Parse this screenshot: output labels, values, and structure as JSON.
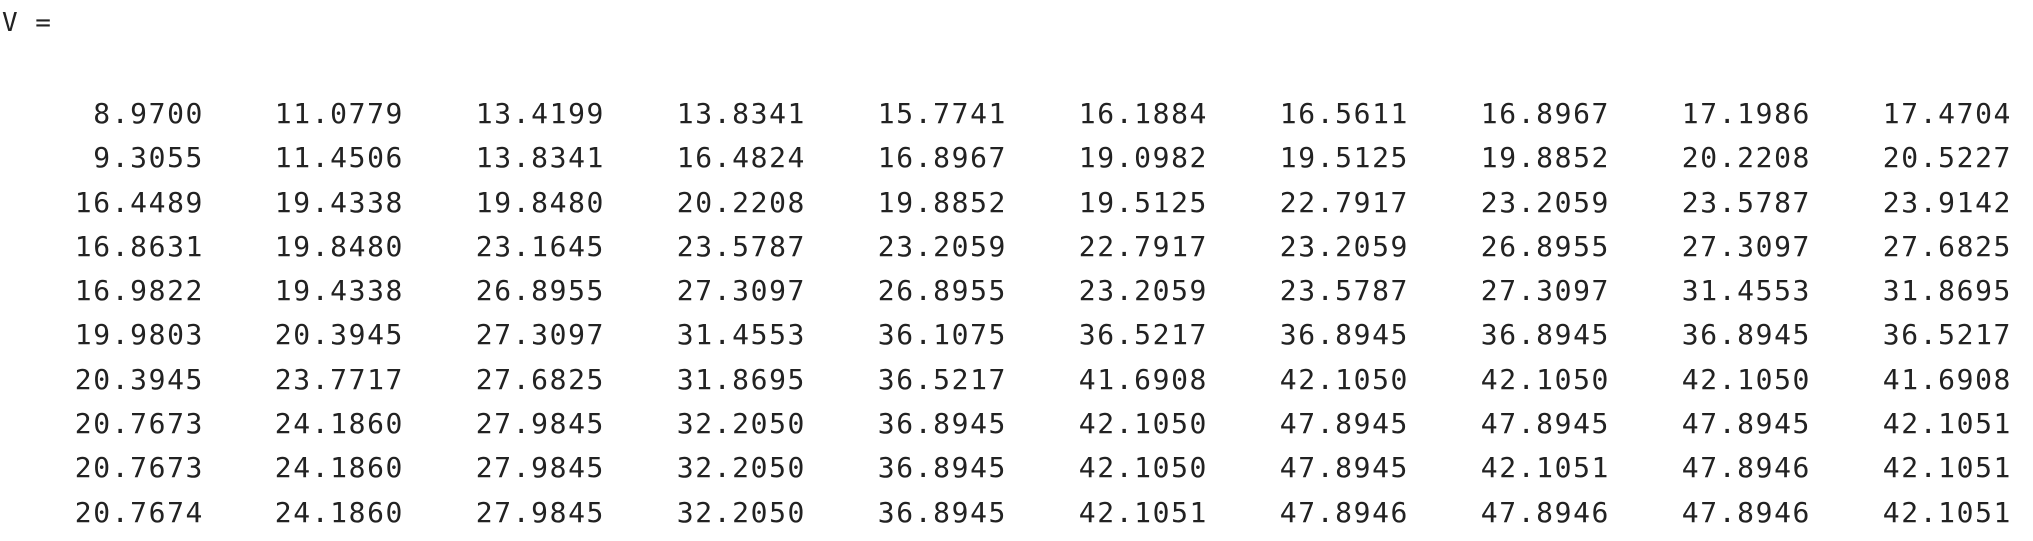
{
  "console": {
    "variable_label": "V =",
    "matrix": [
      [
        "8.9700",
        "11.0779",
        "13.4199",
        "13.8341",
        "15.7741",
        "16.1884",
        "16.5611",
        "16.8967",
        "17.1986",
        "17.4704"
      ],
      [
        "9.3055",
        "11.4506",
        "13.8341",
        "16.4824",
        "16.8967",
        "19.0982",
        "19.5125",
        "19.8852",
        "20.2208",
        "20.5227"
      ],
      [
        "16.4489",
        "19.4338",
        "19.8480",
        "20.2208",
        "19.8852",
        "19.5125",
        "22.7917",
        "23.2059",
        "23.5787",
        "23.9142"
      ],
      [
        "16.8631",
        "19.8480",
        "23.1645",
        "23.5787",
        "23.2059",
        "22.7917",
        "23.2059",
        "26.8955",
        "27.3097",
        "27.6825"
      ],
      [
        "16.9822",
        "19.4338",
        "26.8955",
        "27.3097",
        "26.8955",
        "23.2059",
        "23.5787",
        "27.3097",
        "31.4553",
        "31.8695"
      ],
      [
        "19.9803",
        "20.3945",
        "27.3097",
        "31.4553",
        "36.1075",
        "36.5217",
        "36.8945",
        "36.8945",
        "36.8945",
        "36.5217"
      ],
      [
        "20.3945",
        "23.7717",
        "27.6825",
        "31.8695",
        "36.5217",
        "41.6908",
        "42.1050",
        "42.1050",
        "42.1050",
        "41.6908"
      ],
      [
        "20.7673",
        "24.1860",
        "27.9845",
        "32.2050",
        "36.8945",
        "42.1050",
        "47.8945",
        "47.8945",
        "47.8945",
        "42.1051"
      ],
      [
        "20.7673",
        "24.1860",
        "27.9845",
        "32.2050",
        "36.8945",
        "42.1050",
        "47.8945",
        "42.1051",
        "47.8946",
        "42.1051"
      ],
      [
        "20.7674",
        "24.1860",
        "27.9845",
        "32.2050",
        "36.8945",
        "42.1051",
        "47.8946",
        "47.8946",
        "47.8946",
        "42.1051"
      ]
    ]
  }
}
